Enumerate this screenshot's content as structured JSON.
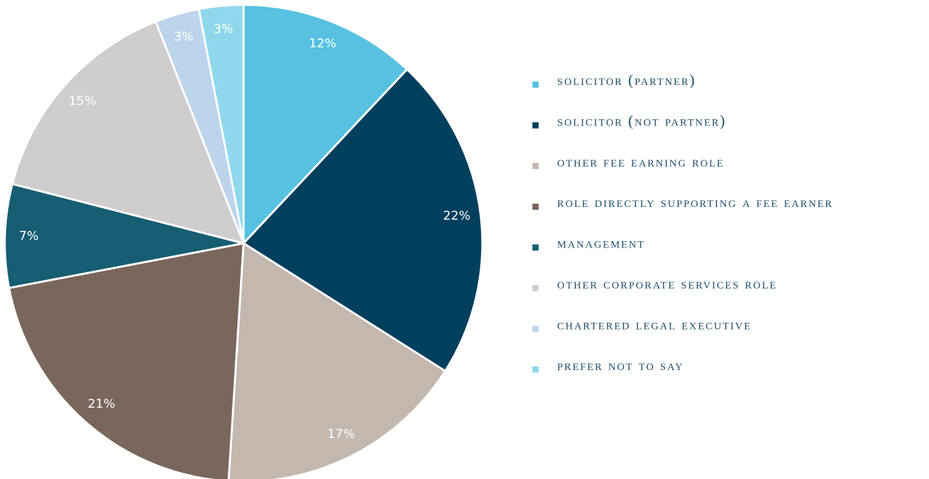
{
  "chart_data": {
    "type": "pie",
    "categories": [
      "solicitor (partner)",
      "solicitor (not partner)",
      "other fee earning role",
      "role directly supporting a fee earner",
      "management",
      "other corporate services role",
      "chartered Legal Executive",
      "prefer not to say"
    ],
    "values": [
      12,
      22,
      17,
      21,
      7,
      15,
      3,
      3
    ],
    "value_labels": [
      "12%",
      "22%",
      "17%",
      "21%",
      "7%",
      "15%",
      "3%",
      "3%"
    ],
    "colors": [
      "#56c1e0",
      "#003f5e",
      "#c4b7ae",
      "#7a675b",
      "#175e72",
      "#d0cdcf",
      "#bdd5ec",
      "#8fd8ec"
    ],
    "legend": "right"
  }
}
